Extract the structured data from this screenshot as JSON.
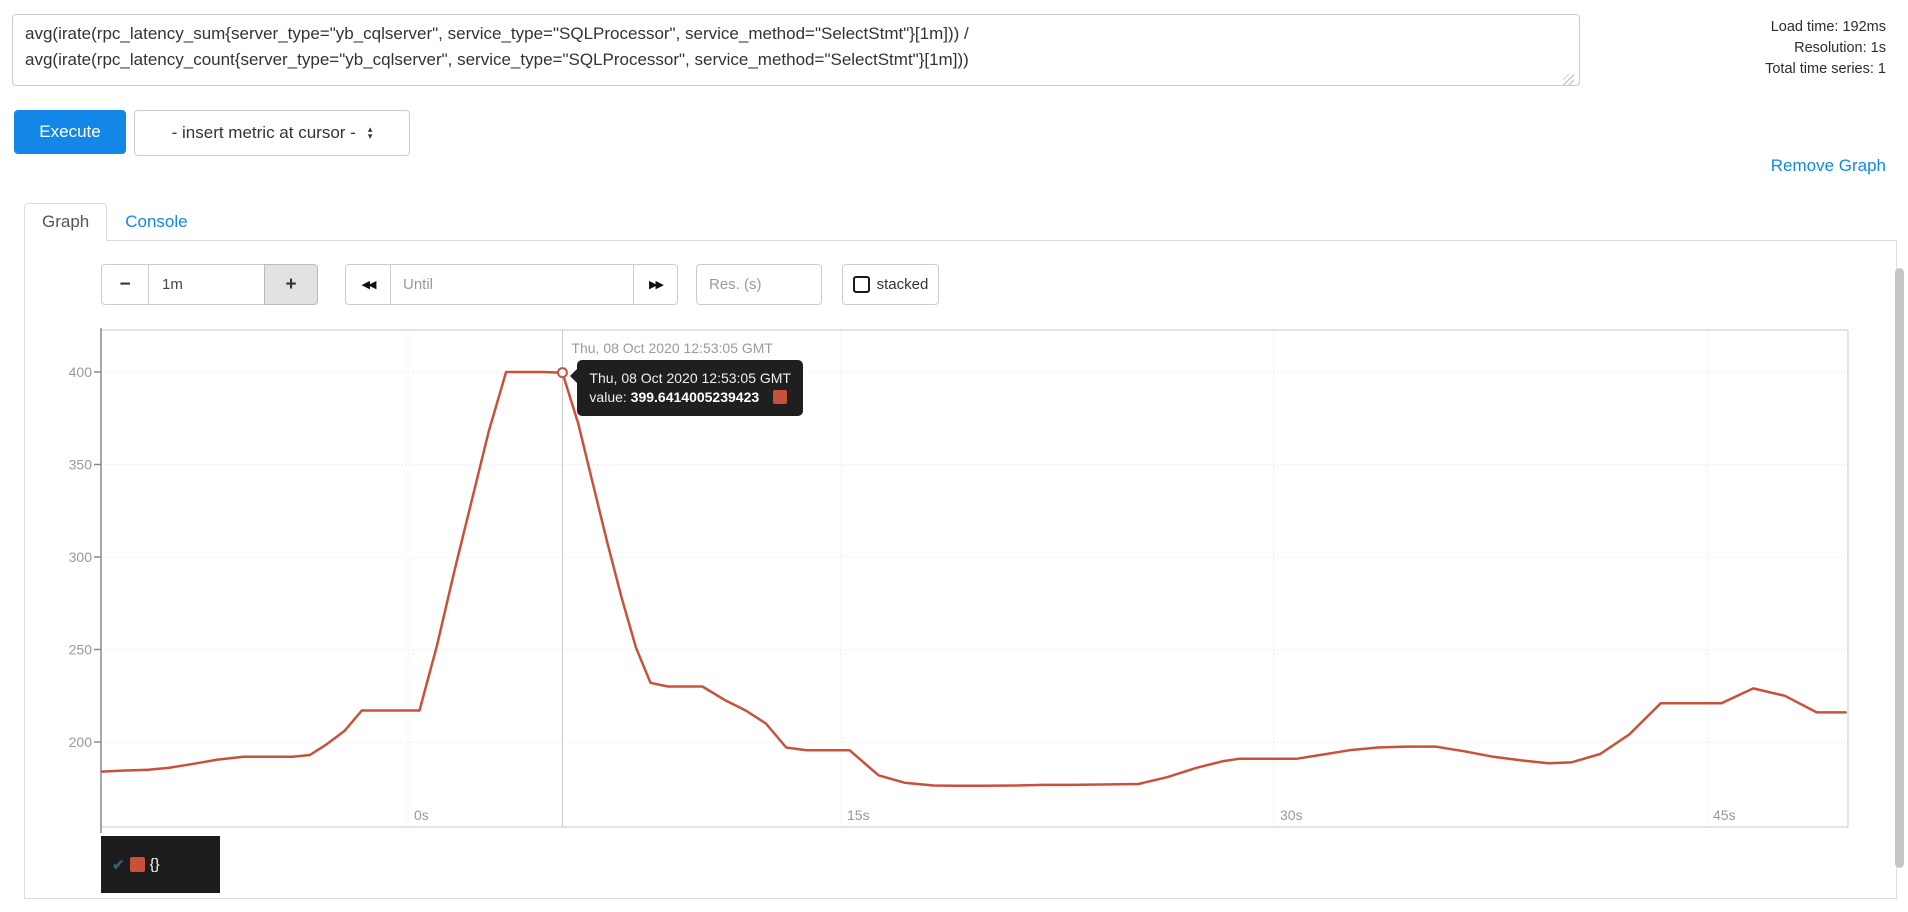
{
  "query": {
    "value": "avg(irate(rpc_latency_sum{server_type=\"yb_cqlserver\", service_type=\"SQLProcessor\", service_method=\"SelectStmt\"}[1m])) /\navg(irate(rpc_latency_count{server_type=\"yb_cqlserver\", service_type=\"SQLProcessor\", service_method=\"SelectStmt\"}[1m]))"
  },
  "stats": {
    "load_time": "Load time: 192ms",
    "resolution": "Resolution: 1s",
    "total_series": "Total time series: 1"
  },
  "controls": {
    "execute_label": "Execute",
    "insert_metric_label": "- insert metric at cursor -",
    "dropdown_arrow_up": "▴",
    "dropdown_arrow_down": "▾",
    "remove_graph_label": "Remove Graph"
  },
  "tabs": [
    {
      "label": "Graph"
    },
    {
      "label": "Console"
    }
  ],
  "toolbar": {
    "minus_label": "−",
    "range_value": "1m",
    "plus_label": "+",
    "rewind_icon": "◀◀",
    "until_placeholder": "Until",
    "forward_icon": "▶▶",
    "res_placeholder": "Res. (s)",
    "stacked_label": "stacked"
  },
  "hover_date_label": "Thu, 08 Oct 2020 12:53:05 GMT",
  "tooltip": {
    "date": "Thu, 08 Oct 2020 12:53:05 GMT",
    "value_label": "value:",
    "value": "399.6414005239423"
  },
  "legend": {
    "check_icon": "✔",
    "series_label": "{}"
  },
  "colors": {
    "accent_blue": "#1287e8",
    "series": "#c9513c",
    "tooltip_bg": "#1c1c1c",
    "grid": "#e2e2e2",
    "axis": "#8a8a8a",
    "tick_label": "#999999"
  },
  "chart_data": {
    "type": "line",
    "title": "",
    "xlabel": "",
    "ylabel": "",
    "x_unit": "seconds",
    "grid": true,
    "legend_position": "bottom-left",
    "y_ticks": [
      200,
      250,
      300,
      350,
      400
    ],
    "x_ticks": [
      {
        "t": 0,
        "label": "0s"
      },
      {
        "t": 15,
        "label": "15s"
      },
      {
        "t": 30,
        "label": "30s"
      },
      {
        "t": 45,
        "label": "45s"
      }
    ],
    "x_range": [
      -10.6,
      49.8
    ],
    "y_range": [
      172,
      423
    ],
    "hover_point": {
      "t": 5.35,
      "value": 399.6414005239423,
      "date": "Thu, 08 Oct 2020 12:53:05 GMT"
    },
    "series": [
      {
        "name": "{}",
        "color": "#c9513c",
        "points": [
          [
            -10.6,
            184
          ],
          [
            -10,
            184.5
          ],
          [
            -9,
            185
          ],
          [
            -8.3,
            186
          ],
          [
            -7.5,
            188
          ],
          [
            -6.6,
            190.5
          ],
          [
            -5.7,
            192
          ],
          [
            -4.8,
            192
          ],
          [
            -4,
            192
          ],
          [
            -3.4,
            193
          ],
          [
            -2.8,
            199
          ],
          [
            -2.2,
            206
          ],
          [
            -1.6,
            217
          ],
          [
            -0.8,
            217
          ],
          [
            0,
            217
          ],
          [
            0.4,
            217
          ],
          [
            1,
            252
          ],
          [
            1.6,
            292
          ],
          [
            2.2,
            330
          ],
          [
            2.8,
            368
          ],
          [
            3.4,
            400
          ],
          [
            4,
            400
          ],
          [
            4.7,
            400
          ],
          [
            5.35,
            399.6414005239423
          ],
          [
            5.9,
            372
          ],
          [
            6.4,
            340
          ],
          [
            6.9,
            308
          ],
          [
            7.4,
            278
          ],
          [
            7.9,
            251
          ],
          [
            8.4,
            232
          ],
          [
            9,
            230
          ],
          [
            9.6,
            230
          ],
          [
            10.2,
            230
          ],
          [
            11,
            222.5
          ],
          [
            11.7,
            217
          ],
          [
            12.4,
            210
          ],
          [
            13.1,
            197
          ],
          [
            13.8,
            195.5
          ],
          [
            14.5,
            195.5
          ],
          [
            15.3,
            195.5
          ],
          [
            16.3,
            182
          ],
          [
            17.2,
            178
          ],
          [
            18.2,
            176.5
          ],
          [
            19,
            176.3
          ],
          [
            20,
            176.3
          ],
          [
            21,
            176.5
          ],
          [
            22,
            176.8
          ],
          [
            23,
            176.8
          ],
          [
            24,
            177
          ],
          [
            25.3,
            177.3
          ],
          [
            26.3,
            181
          ],
          [
            27.3,
            186
          ],
          [
            28.2,
            189.5
          ],
          [
            28.8,
            191
          ],
          [
            29.6,
            191
          ],
          [
            30.8,
            191
          ],
          [
            31.6,
            193
          ],
          [
            32.6,
            195.5
          ],
          [
            33.6,
            197
          ],
          [
            34.6,
            197.5
          ],
          [
            35.6,
            197.5
          ],
          [
            36.6,
            195
          ],
          [
            37.6,
            192
          ],
          [
            38.6,
            190
          ],
          [
            39.5,
            188.5
          ],
          [
            40.3,
            189
          ],
          [
            41.3,
            193.5
          ],
          [
            42.3,
            204
          ],
          [
            43.4,
            221
          ],
          [
            44.4,
            221
          ],
          [
            45.5,
            221
          ],
          [
            46.6,
            229
          ],
          [
            47.7,
            225
          ],
          [
            48.8,
            216
          ],
          [
            49.8,
            216
          ]
        ]
      }
    ]
  }
}
